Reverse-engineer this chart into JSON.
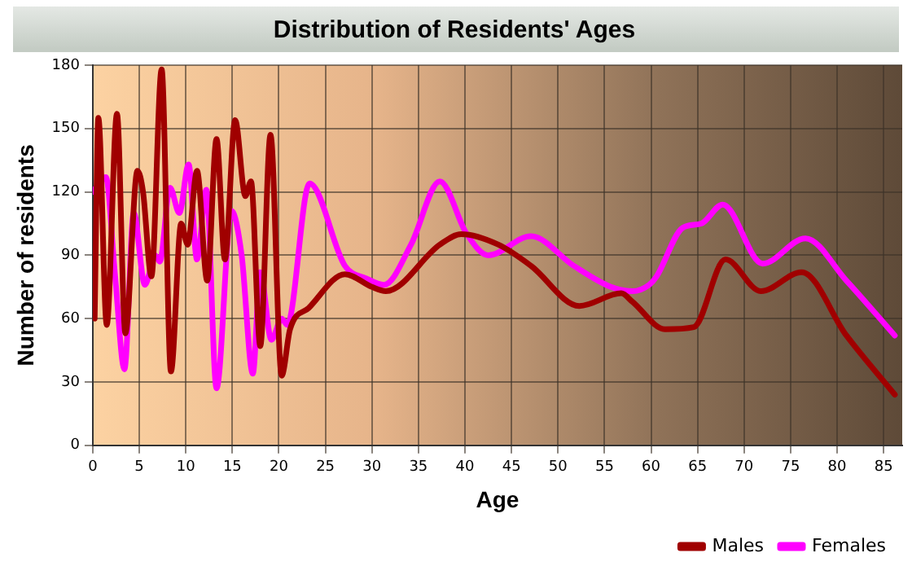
{
  "chart_data": {
    "type": "line",
    "title": "Distribution of Residents' Ages",
    "xlabel": "Age",
    "ylabel": "Number of residents",
    "xlim": [
      0,
      87
    ],
    "xticks": [
      0,
      5,
      10,
      15,
      20,
      25,
      30,
      35,
      40,
      45,
      50,
      55,
      60,
      65,
      70,
      75,
      80,
      85
    ],
    "ylim": [
      0,
      180
    ],
    "yticks": [
      0,
      30,
      60,
      90,
      120,
      150,
      180
    ],
    "grid": true,
    "legend": "bottom right",
    "marker": "none",
    "line_style": "solid",
    "series": [
      {
        "name": "Males",
        "color": "#a00000",
        "x": [
          0.2,
          0.6,
          1.5,
          2.6,
          3.5,
          4.8,
          5.4,
          6.3,
          7.4,
          8.4,
          9.5,
          10.2,
          11.2,
          12.3,
          13.3,
          14.2,
          15.3,
          16.4,
          17,
          18,
          19.1,
          20.3,
          21.2,
          23.2,
          27.1,
          30,
          31.5,
          37.3,
          39.6,
          43.6,
          47.1,
          52.3,
          56.8,
          58,
          61.5,
          64.6,
          68,
          71.8,
          76.2,
          81,
          86.2
        ],
        "values": [
          60,
          155,
          57,
          157,
          53,
          130,
          120,
          80,
          178,
          35,
          105,
          95,
          130,
          78,
          145,
          88,
          154,
          118,
          125,
          47,
          147,
          33,
          55,
          65,
          81,
          75,
          73,
          95,
          100,
          95,
          85,
          66,
          72,
          68,
          55,
          56,
          88,
          73,
          82,
          52,
          24
        ]
      },
      {
        "name": "Females",
        "color": "#ff00ff",
        "x": [
          0,
          1.4,
          2.4,
          3.4,
          4.4,
          5.6,
          6.7,
          7.2,
          8.3,
          9.3,
          10.3,
          11.2,
          12.2,
          13.3,
          14.9,
          16,
          17.2,
          18,
          19.2,
          20.3,
          20.9,
          23.3,
          27.1,
          29.4,
          31.3,
          34.2,
          37.3,
          40.2,
          42.5,
          47.1,
          51.7,
          55.7,
          58,
          59.8,
          60.6,
          63.4,
          65.4,
          67.7,
          72,
          76.6,
          81,
          86.2
        ],
        "values": [
          120,
          127,
          80,
          36,
          110,
          76,
          90,
          87,
          122,
          110,
          133,
          88,
          121,
          27,
          111,
          90,
          34,
          82,
          50,
          60,
          57,
          124,
          85,
          79,
          76,
          95,
          125,
          100,
          90,
          99,
          85,
          75,
          73,
          76,
          80,
          103,
          105,
          114,
          86,
          98,
          78,
          52
        ]
      }
    ]
  }
}
